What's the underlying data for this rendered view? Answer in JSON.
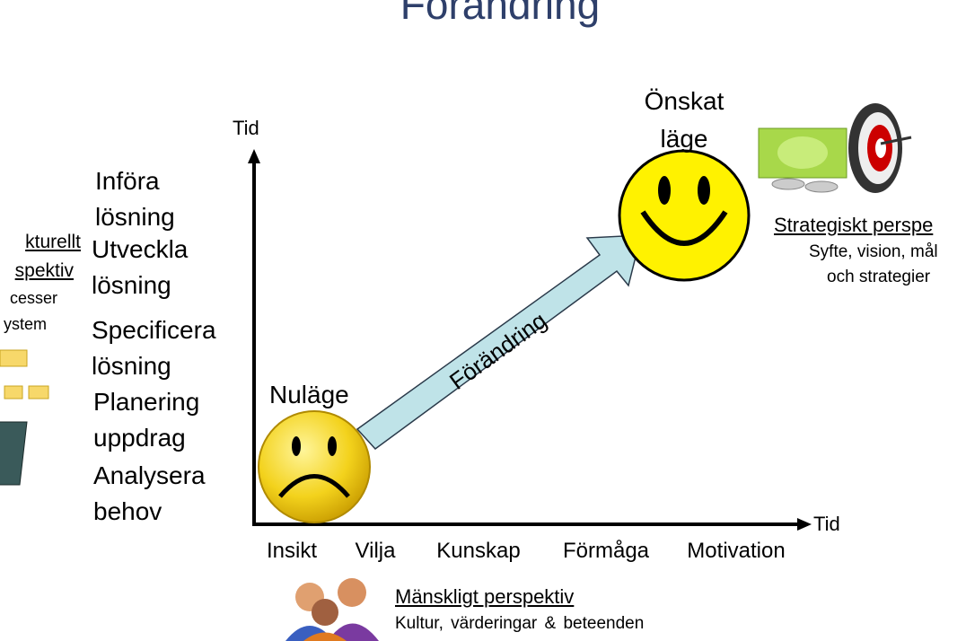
{
  "header": {
    "title": "Förändring"
  },
  "axes": {
    "y_label": "Tid",
    "x_label": "Tid"
  },
  "steps": [
    {
      "line1": "Införa",
      "line2": "lösning"
    },
    {
      "line1": "Utveckla",
      "line2": "lösning"
    },
    {
      "line1": "Specificera",
      "line2": "lösning"
    },
    {
      "line1": "Planering",
      "line2": "uppdrag"
    },
    {
      "line1": "Analysera",
      "line2": "behov"
    }
  ],
  "states": {
    "current": "Nuläge",
    "desired_line1": "Önskat",
    "desired_line2": "läge",
    "arrow": "Förändring"
  },
  "x_categories": [
    "Insikt",
    "Vilja",
    "Kunskap",
    "Förmåga",
    "Motivation"
  ],
  "structural": {
    "title_line1": "kturellt",
    "title_line2": "spektiv",
    "item1": "cesser",
    "item2": "ystem"
  },
  "human": {
    "title": "Mänskligt perspektiv",
    "subtitle": "Kultur, värderingar & beteenden"
  },
  "strategic": {
    "title": "Strategiskt perspe",
    "line1": "Syfte, vision, mål",
    "line2": "och strategier"
  }
}
